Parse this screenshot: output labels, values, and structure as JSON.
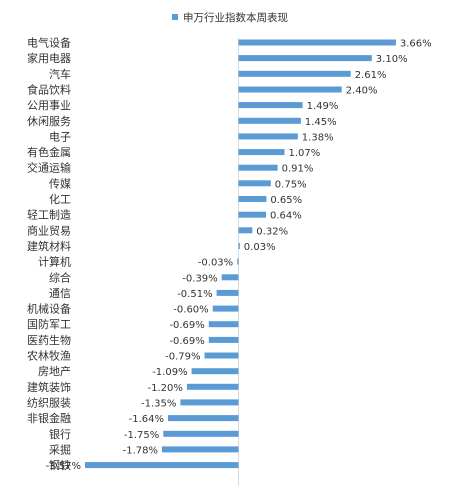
{
  "chart_data": {
    "type": "bar",
    "orientation": "horizontal",
    "legend": {
      "label": "申万行业指数本周表现",
      "position": "top-center"
    },
    "bar_color": "#5b9bd5",
    "axis_color": "#d9d9d9",
    "grid": false,
    "xlim": [
      -3.57,
      3.66
    ],
    "series": [
      {
        "name": "申万行业指数本周表现",
        "categories": [
          "电气设备",
          "家用电器",
          "汽车",
          "食品饮料",
          "公用事业",
          "休闲服务",
          "电子",
          "有色金属",
          "交通运输",
          "传媒",
          "化工",
          "轻工制造",
          "商业贸易",
          "建筑材料",
          "计算机",
          "综合",
          "通信",
          "机械设备",
          "国防军工",
          "医药生物",
          "农林牧渔",
          "房地产",
          "建筑装饰",
          "纺织服装",
          "非银金融",
          "银行",
          "采掘",
          "钢铁"
        ],
        "values": [
          3.66,
          3.1,
          2.61,
          2.4,
          1.49,
          1.45,
          1.38,
          1.07,
          0.91,
          0.75,
          0.65,
          0.64,
          0.32,
          0.03,
          -0.03,
          -0.39,
          -0.51,
          -0.6,
          -0.69,
          -0.69,
          -0.79,
          -1.09,
          -1.2,
          -1.35,
          -1.64,
          -1.75,
          -1.78,
          -3.57
        ],
        "labels": [
          "3.66%",
          "3.10%",
          "2.61%",
          "2.40%",
          "1.49%",
          "1.45%",
          "1.38%",
          "1.07%",
          "0.91%",
          "0.75%",
          "0.65%",
          "0.64%",
          "0.32%",
          "0.03%",
          "-0.03%",
          "-0.39%",
          "-0.51%",
          "-0.60%",
          "-0.69%",
          "-0.69%",
          "-0.79%",
          "-1.09%",
          "-1.20%",
          "-1.35%",
          "-1.64%",
          "-1.75%",
          "-1.78%",
          "-3.57%"
        ]
      }
    ]
  }
}
